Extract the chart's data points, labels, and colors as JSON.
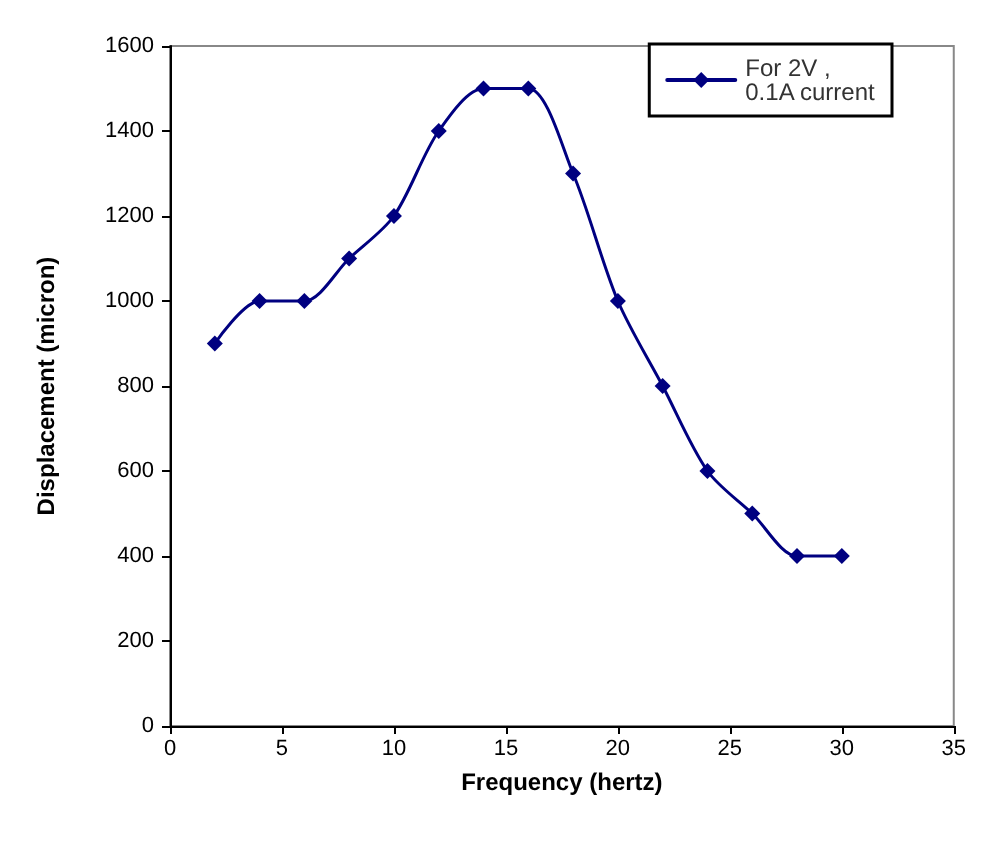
{
  "chart_data": {
    "type": "line",
    "xlabel": "Frequency (hertz)",
    "ylabel": "Displacement (micron)",
    "x": [
      2,
      4,
      6,
      8,
      10,
      12,
      14,
      16,
      18,
      20,
      22,
      24,
      26,
      28,
      30
    ],
    "series": [
      {
        "name": "For 2V , 0.1A current",
        "color": "#000080",
        "values": [
          900,
          1000,
          1000,
          1100,
          1200,
          1400,
          1500,
          1500,
          1300,
          1000,
          800,
          600,
          500,
          400,
          400
        ]
      }
    ],
    "xlim": [
      0,
      35
    ],
    "xticks": [
      0,
      5,
      10,
      15,
      20,
      25,
      30,
      35
    ],
    "ylim": [
      0,
      1600
    ],
    "yticks": [
      0,
      200,
      400,
      600,
      800,
      1000,
      1200,
      1400,
      1600
    ],
    "grid": false,
    "legend": "top right",
    "marker": "diamond",
    "line_style": "solid"
  }
}
